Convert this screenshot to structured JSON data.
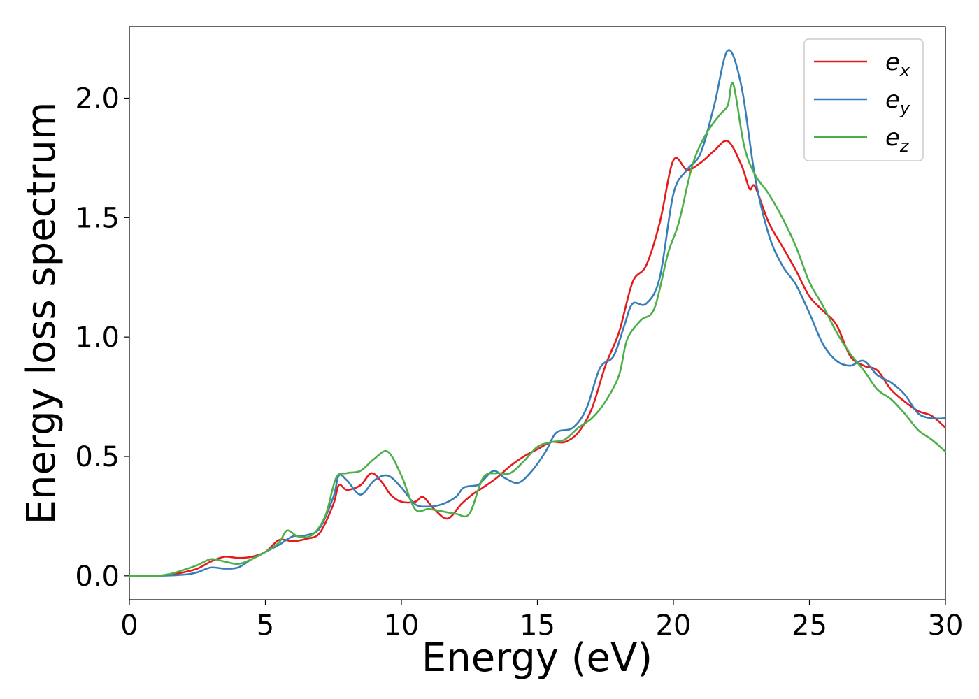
{
  "chart_data": {
    "type": "line",
    "title": "",
    "xlabel": "Energy (eV)",
    "ylabel": "Energy loss spectrum",
    "xlim": [
      0,
      30
    ],
    "ylim": [
      -0.1,
      2.3
    ],
    "x_ticks": [
      "0",
      "5",
      "10",
      "15",
      "20",
      "25",
      "30"
    ],
    "y_ticks": [
      "0.0",
      "0.5",
      "1.0",
      "1.5",
      "2.0"
    ],
    "grid": false,
    "legend_position": "top-right",
    "series": [
      {
        "name": "e",
        "subscript": "x",
        "color": "#e41a1c",
        "points": [
          [
            0,
            0
          ],
          [
            1,
            0
          ],
          [
            1.5,
            0.005
          ],
          [
            2,
            0.015
          ],
          [
            2.5,
            0.03
          ],
          [
            3,
            0.06
          ],
          [
            3.5,
            0.08
          ],
          [
            4,
            0.075
          ],
          [
            4.5,
            0.08
          ],
          [
            5,
            0.1
          ],
          [
            5.5,
            0.15
          ],
          [
            6,
            0.145
          ],
          [
            6.5,
            0.155
          ],
          [
            7,
            0.18
          ],
          [
            7.5,
            0.3
          ],
          [
            7.7,
            0.38
          ],
          [
            8,
            0.36
          ],
          [
            8.5,
            0.38
          ],
          [
            8.9,
            0.43
          ],
          [
            9.3,
            0.39
          ],
          [
            9.6,
            0.34
          ],
          [
            10,
            0.31
          ],
          [
            10.5,
            0.31
          ],
          [
            10.8,
            0.33
          ],
          [
            11.2,
            0.28
          ],
          [
            11.7,
            0.24
          ],
          [
            12.2,
            0.3
          ],
          [
            12.6,
            0.34
          ],
          [
            13,
            0.37
          ],
          [
            13.5,
            0.41
          ],
          [
            14,
            0.46
          ],
          [
            14.5,
            0.5
          ],
          [
            15,
            0.53
          ],
          [
            15.5,
            0.56
          ],
          [
            16,
            0.56
          ],
          [
            16.5,
            0.6
          ],
          [
            17,
            0.7
          ],
          [
            17.5,
            0.88
          ],
          [
            18,
            1.02
          ],
          [
            18.5,
            1.23
          ],
          [
            19,
            1.3
          ],
          [
            19.5,
            1.48
          ],
          [
            20,
            1.74
          ],
          [
            20.5,
            1.7
          ],
          [
            21,
            1.73
          ],
          [
            21.5,
            1.78
          ],
          [
            22,
            1.82
          ],
          [
            22.5,
            1.72
          ],
          [
            22.8,
            1.62
          ],
          [
            23,
            1.63
          ],
          [
            23.5,
            1.48
          ],
          [
            24,
            1.38
          ],
          [
            24.5,
            1.28
          ],
          [
            25,
            1.17
          ],
          [
            25.5,
            1.11
          ],
          [
            26,
            1.05
          ],
          [
            26.5,
            0.92
          ],
          [
            27,
            0.88
          ],
          [
            27.5,
            0.86
          ],
          [
            28,
            0.78
          ],
          [
            28.5,
            0.73
          ],
          [
            29,
            0.69
          ],
          [
            29.5,
            0.67
          ],
          [
            30,
            0.62
          ]
        ]
      },
      {
        "name": "e",
        "subscript": "y",
        "color": "#377eb8",
        "points": [
          [
            0,
            0
          ],
          [
            1,
            0
          ],
          [
            2,
            0.005
          ],
          [
            2.5,
            0.015
          ],
          [
            3,
            0.035
          ],
          [
            3.5,
            0.03
          ],
          [
            4,
            0.035
          ],
          [
            4.5,
            0.07
          ],
          [
            5,
            0.1
          ],
          [
            5.5,
            0.13
          ],
          [
            6,
            0.165
          ],
          [
            6.5,
            0.17
          ],
          [
            7,
            0.2
          ],
          [
            7.5,
            0.33
          ],
          [
            7.7,
            0.42
          ],
          [
            8,
            0.4
          ],
          [
            8.5,
            0.34
          ],
          [
            9,
            0.4
          ],
          [
            9.5,
            0.42
          ],
          [
            10,
            0.37
          ],
          [
            10.5,
            0.3
          ],
          [
            11,
            0.29
          ],
          [
            11.5,
            0.3
          ],
          [
            12,
            0.33
          ],
          [
            12.3,
            0.37
          ],
          [
            12.8,
            0.38
          ],
          [
            13,
            0.4
          ],
          [
            13.4,
            0.44
          ],
          [
            13.8,
            0.41
          ],
          [
            14.3,
            0.39
          ],
          [
            14.8,
            0.44
          ],
          [
            15.3,
            0.52
          ],
          [
            15.7,
            0.6
          ],
          [
            16.3,
            0.62
          ],
          [
            16.8,
            0.7
          ],
          [
            17.3,
            0.87
          ],
          [
            17.8,
            0.92
          ],
          [
            18.2,
            1.05
          ],
          [
            18.5,
            1.14
          ],
          [
            19,
            1.14
          ],
          [
            19.5,
            1.25
          ],
          [
            20,
            1.6
          ],
          [
            20.5,
            1.7
          ],
          [
            21,
            1.77
          ],
          [
            21.5,
            1.97
          ],
          [
            22,
            2.2
          ],
          [
            22.5,
            2.05
          ],
          [
            23,
            1.67
          ],
          [
            23.5,
            1.43
          ],
          [
            24,
            1.3
          ],
          [
            24.5,
            1.22
          ],
          [
            25,
            1.1
          ],
          [
            25.5,
            0.97
          ],
          [
            26,
            0.9
          ],
          [
            26.5,
            0.88
          ],
          [
            27,
            0.9
          ],
          [
            27.5,
            0.84
          ],
          [
            28,
            0.81
          ],
          [
            28.5,
            0.76
          ],
          [
            29,
            0.68
          ],
          [
            29.5,
            0.66
          ],
          [
            30,
            0.66
          ]
        ]
      },
      {
        "name": "e",
        "subscript": "z",
        "color": "#4daf4a",
        "points": [
          [
            0,
            0
          ],
          [
            1,
            0
          ],
          [
            1.5,
            0.008
          ],
          [
            2,
            0.025
          ],
          [
            2.5,
            0.045
          ],
          [
            3,
            0.07
          ],
          [
            3.5,
            0.06
          ],
          [
            4,
            0.05
          ],
          [
            4.5,
            0.07
          ],
          [
            5,
            0.1
          ],
          [
            5.5,
            0.14
          ],
          [
            5.8,
            0.19
          ],
          [
            6.2,
            0.165
          ],
          [
            6.7,
            0.17
          ],
          [
            7.2,
            0.25
          ],
          [
            7.6,
            0.41
          ],
          [
            8,
            0.43
          ],
          [
            8.5,
            0.44
          ],
          [
            9,
            0.49
          ],
          [
            9.5,
            0.52
          ],
          [
            10,
            0.42
          ],
          [
            10.5,
            0.28
          ],
          [
            11,
            0.28
          ],
          [
            11.5,
            0.27
          ],
          [
            12,
            0.26
          ],
          [
            12.5,
            0.26
          ],
          [
            13,
            0.41
          ],
          [
            13.5,
            0.43
          ],
          [
            14,
            0.43
          ],
          [
            14.5,
            0.48
          ],
          [
            15,
            0.54
          ],
          [
            15.5,
            0.56
          ],
          [
            16,
            0.57
          ],
          [
            16.5,
            0.62
          ],
          [
            17,
            0.66
          ],
          [
            17.5,
            0.73
          ],
          [
            18,
            0.84
          ],
          [
            18.3,
            0.99
          ],
          [
            18.8,
            1.07
          ],
          [
            19.3,
            1.12
          ],
          [
            19.8,
            1.35
          ],
          [
            20.2,
            1.48
          ],
          [
            20.7,
            1.72
          ],
          [
            21.2,
            1.85
          ],
          [
            21.7,
            1.93
          ],
          [
            22,
            1.97
          ],
          [
            22.2,
            2.06
          ],
          [
            22.6,
            1.8
          ],
          [
            23,
            1.68
          ],
          [
            23.5,
            1.6
          ],
          [
            24,
            1.5
          ],
          [
            24.5,
            1.38
          ],
          [
            25,
            1.23
          ],
          [
            25.5,
            1.13
          ],
          [
            26,
            1.02
          ],
          [
            26.5,
            0.93
          ],
          [
            27,
            0.86
          ],
          [
            27.5,
            0.78
          ],
          [
            28,
            0.74
          ],
          [
            28.5,
            0.68
          ],
          [
            29,
            0.61
          ],
          [
            29.5,
            0.57
          ],
          [
            30,
            0.52
          ]
        ]
      }
    ]
  }
}
